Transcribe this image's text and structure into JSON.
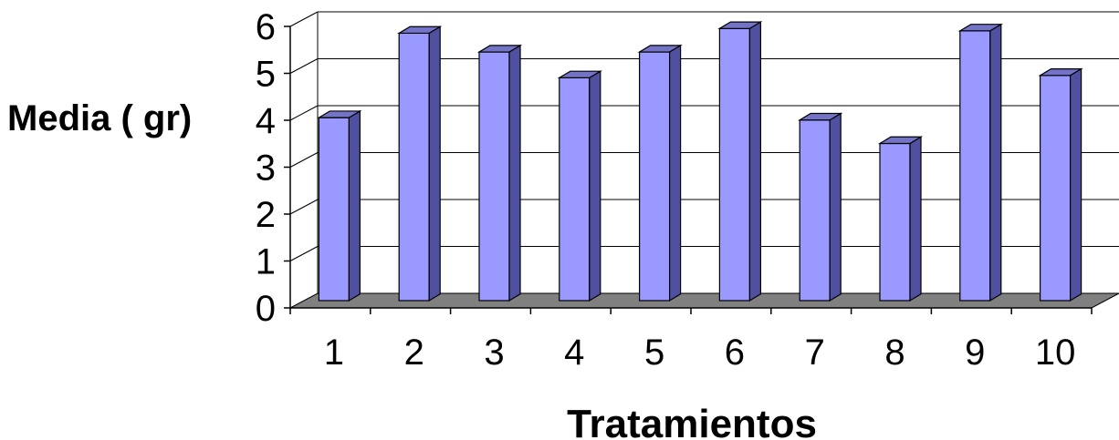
{
  "chart_data": {
    "type": "bar",
    "title": "",
    "xlabel": "Tratamientos",
    "ylabel": "Media ( gr)",
    "categories": [
      "1",
      "2",
      "3",
      "4",
      "5",
      "6",
      "7",
      "8",
      "9",
      "10"
    ],
    "values": [
      3.9,
      5.7,
      5.3,
      4.75,
      5.3,
      5.8,
      3.85,
      3.35,
      5.75,
      4.8
    ],
    "yticks": [
      "0",
      "1",
      "2",
      "3",
      "4",
      "5",
      "6"
    ],
    "ylim": [
      0,
      6
    ],
    "grid": true,
    "three_d": true,
    "colors": {
      "bar_front": "#9999ff",
      "bar_side": "#5050a0",
      "bar_top": "#7373c8",
      "floor": "#808080",
      "grid": "#000000"
    }
  }
}
